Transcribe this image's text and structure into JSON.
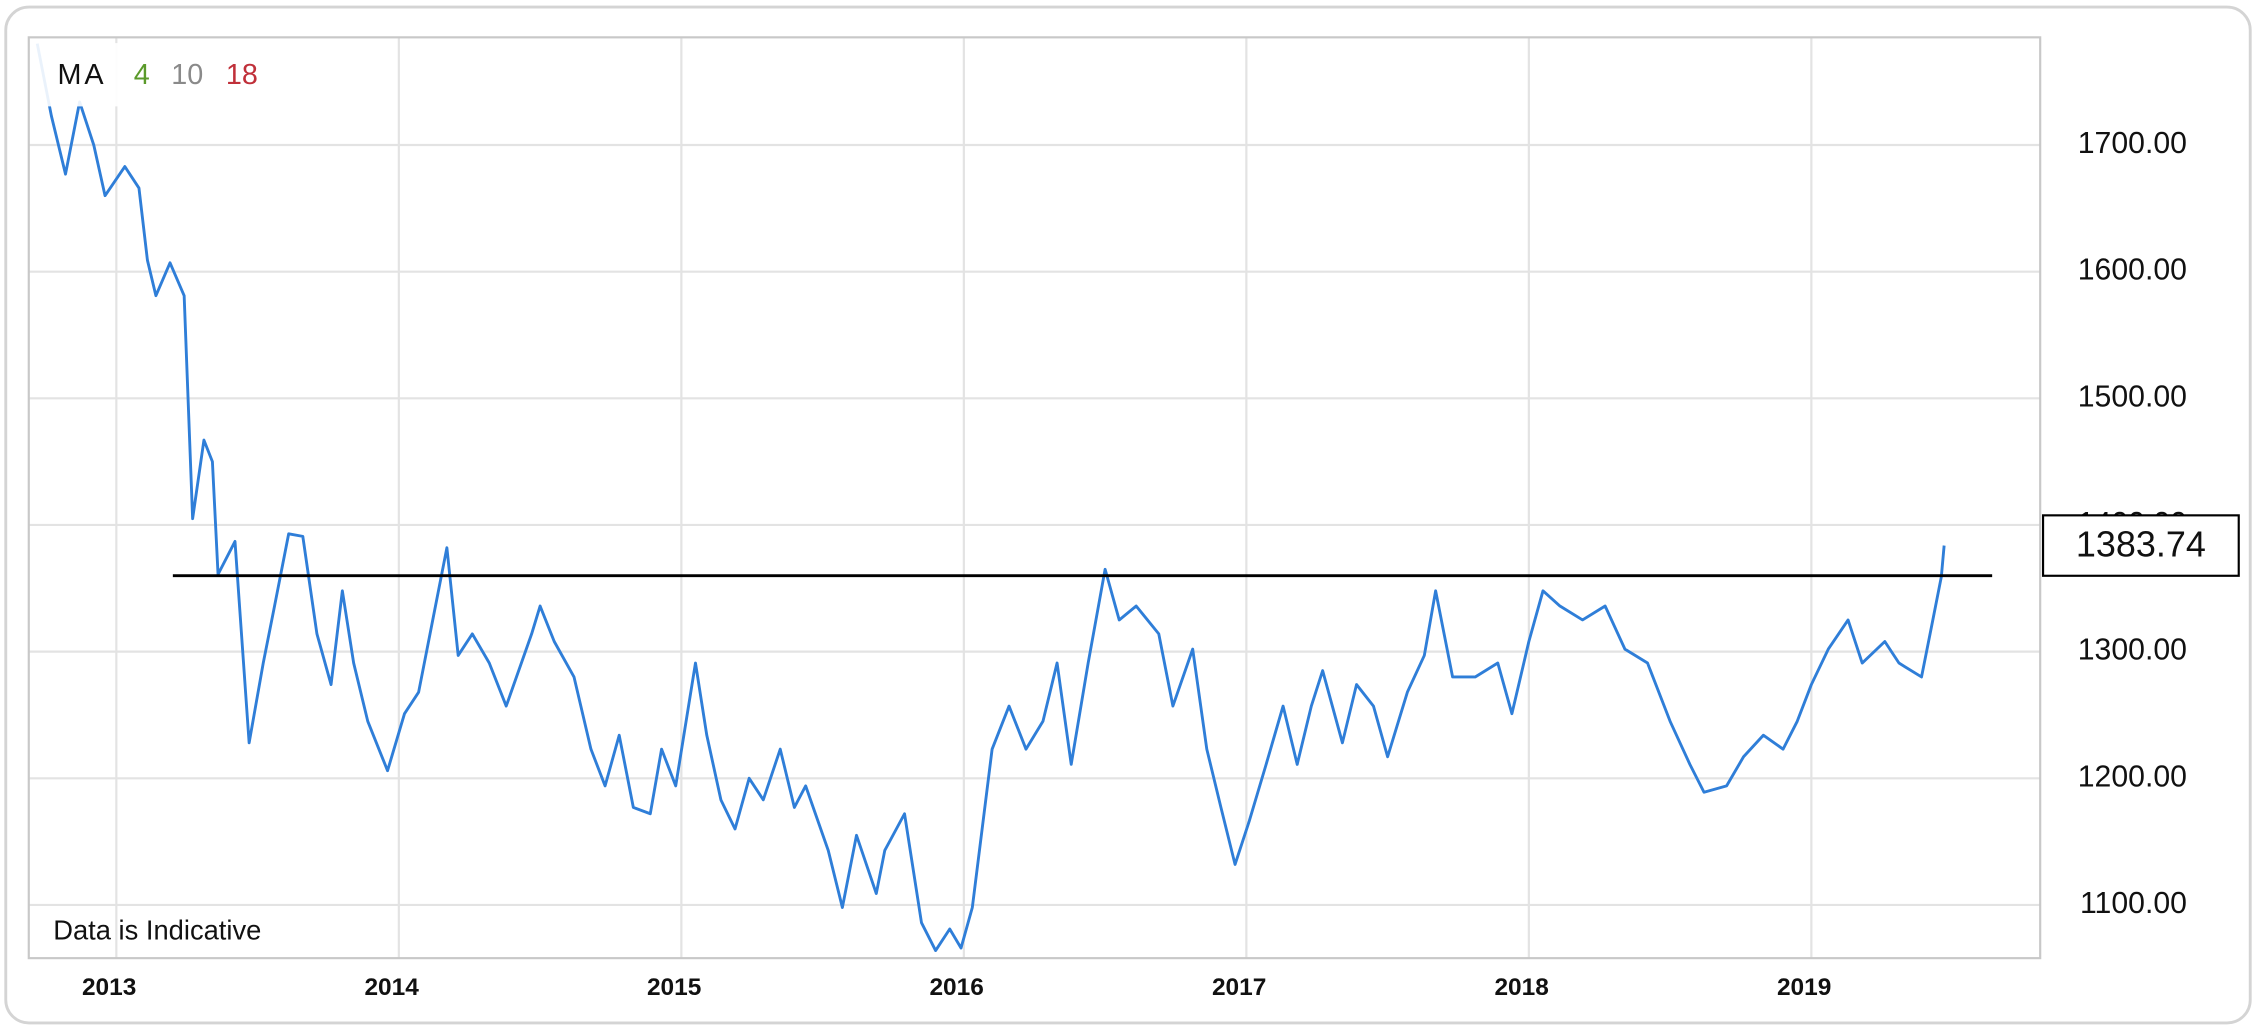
{
  "chart_data": {
    "type": "line",
    "annotation": "Data is Indicative",
    "legend": {
      "title": "MA",
      "items": [
        {
          "label": "4",
          "color": "#5b9a2b"
        },
        {
          "label": "10",
          "color": "#8a8a8a"
        },
        {
          "label": "18",
          "color": "#c0303a"
        }
      ]
    },
    "xlim": [
      2012.69,
      2019.81
    ],
    "xticks": [
      2013,
      2014,
      2015,
      2016,
      2017,
      2018,
      2019
    ],
    "ylim": [
      1058,
      1785
    ],
    "yticks": [
      {
        "value": 1100,
        "label": "1100.00"
      },
      {
        "value": 1200,
        "label": "1200.00"
      },
      {
        "value": 1300,
        "label": "1300.00"
      },
      {
        "value": 1400,
        "label": "1400.00"
      },
      {
        "value": 1500,
        "label": "1500.00"
      },
      {
        "value": 1600,
        "label": "1600.00"
      },
      {
        "value": 1700,
        "label": "1700.00"
      }
    ],
    "grid": true,
    "reference_line": {
      "value": 1360,
      "x": [
        2013.2,
        2019.64
      ],
      "color": "#000000"
    },
    "current_value": 1383.74,
    "series": [
      {
        "color": "#2f7ed8",
        "x": [
          2012.72,
          2012.77,
          2012.82,
          2012.87,
          2012.92,
          2012.96,
          2013.03,
          2013.08,
          2013.11,
          2013.14,
          2013.19,
          2013.24,
          2013.27,
          2013.31,
          2013.34,
          2013.36,
          2013.42,
          2013.47,
          2013.52,
          2013.56,
          2013.61,
          2013.66,
          2013.71,
          2013.76,
          2013.8,
          2013.84,
          2013.89,
          2013.96,
          2014.02,
          2014.07,
          2014.12,
          2014.17,
          2014.21,
          2014.26,
          2014.32,
          2014.38,
          2014.47,
          2014.5,
          2014.55,
          2014.62,
          2014.68,
          2014.73,
          2014.78,
          2014.83,
          2014.89,
          2014.93,
          2014.98,
          2015.05,
          2015.09,
          2015.14,
          2015.19,
          2015.24,
          2015.29,
          2015.35,
          2015.4,
          2015.44,
          2015.52,
          2015.57,
          2015.62,
          2015.69,
          2015.72,
          2015.79,
          2015.85,
          2015.9,
          2015.95,
          2015.99,
          2016.03,
          2016.1,
          2016.16,
          2016.22,
          2016.28,
          2016.33,
          2016.38,
          2016.44,
          2016.5,
          2016.55,
          2016.61,
          2016.69,
          2016.74,
          2016.81,
          2016.86,
          2016.91,
          2016.96,
          2017.01,
          2017.07,
          2017.13,
          2017.18,
          2017.23,
          2017.27,
          2017.34,
          2017.39,
          2017.45,
          2017.5,
          2017.57,
          2017.63,
          2017.67,
          2017.73,
          2017.81,
          2017.89,
          2017.94,
          2018.0,
          2018.05,
          2018.11,
          2018.19,
          2018.27,
          2018.34,
          2018.42,
          2018.5,
          2018.57,
          2018.62,
          2018.7,
          2018.76,
          2018.83,
          2018.9,
          2018.95,
          2019.0,
          2019.06,
          2019.13,
          2019.18,
          2019.26,
          2019.31,
          2019.39,
          2019.43,
          2019.46,
          2019.47
        ],
        "values": [
          1780,
          1723,
          1677,
          1734,
          1700,
          1660,
          1683,
          1666,
          1609,
          1581,
          1607,
          1581,
          1405,
          1467,
          1450,
          1361,
          1387,
          1228,
          1291,
          1336,
          1393,
          1391,
          1314,
          1274,
          1348,
          1291,
          1245,
          1206,
          1251,
          1268,
          1325,
          1382,
          1297,
          1314,
          1291,
          1257,
          1314,
          1336,
          1308,
          1280,
          1223,
          1194,
          1234,
          1177,
          1172,
          1223,
          1194,
          1291,
          1234,
          1183,
          1160,
          1200,
          1183,
          1223,
          1177,
          1194,
          1143,
          1098,
          1155,
          1109,
          1143,
          1172,
          1086,
          1064,
          1081,
          1066,
          1098,
          1223,
          1257,
          1223,
          1245,
          1291,
          1211,
          1291,
          1365,
          1325,
          1336,
          1314,
          1257,
          1302,
          1223,
          1177,
          1132,
          1166,
          1211,
          1257,
          1211,
          1257,
          1285,
          1228,
          1274,
          1257,
          1217,
          1268,
          1297,
          1348,
          1280,
          1280,
          1291,
          1251,
          1308,
          1348,
          1336,
          1325,
          1336,
          1302,
          1291,
          1245,
          1211,
          1189,
          1194,
          1217,
          1234,
          1223,
          1245,
          1274,
          1302,
          1325,
          1291,
          1308,
          1291,
          1280,
          1325,
          1359,
          1383.74
        ]
      }
    ]
  }
}
